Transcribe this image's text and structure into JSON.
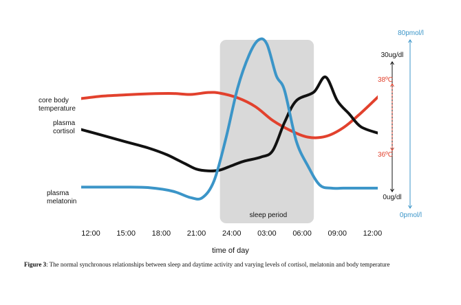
{
  "chart_data": {
    "type": "line",
    "xlabel": "time of day",
    "x_ticks": [
      "12:00",
      "15:00",
      "18:00",
      "21:00",
      "24:00",
      "03:00",
      "06:00",
      "09:00",
      "12:00"
    ],
    "x_hours": [
      12,
      15,
      18,
      21,
      24,
      27,
      30,
      33,
      36
    ],
    "xlim": [
      12,
      36
    ],
    "shaded_region": {
      "label": "sleep period",
      "start": "23:00",
      "end": "07:00",
      "start_hour": 23,
      "end_hour": 31,
      "color": "#d9d9d9"
    },
    "series": [
      {
        "name": "core body temperature",
        "label_lines": [
          "core body",
          "temperature"
        ],
        "color": "#e2412d",
        "axis": "temperature",
        "x": [
          11,
          13,
          15,
          17,
          19,
          20.5,
          22,
          23,
          24.5,
          26,
          27.5,
          29,
          30.5,
          32,
          33.5,
          35,
          36.5
        ],
        "y": [
          37.55,
          37.63,
          37.67,
          37.7,
          37.71,
          37.68,
          37.74,
          37.72,
          37.58,
          37.32,
          36.9,
          36.6,
          36.4,
          36.42,
          36.68,
          37.12,
          37.62
        ]
      },
      {
        "name": "plasma cortisol",
        "label_lines": [
          "plasma",
          "cortisol"
        ],
        "color": "#111111",
        "axis": "cortisol",
        "x": [
          11,
          13,
          15,
          17,
          18.5,
          20,
          21,
          22,
          23,
          24,
          25,
          26.5,
          27.5,
          28.5,
          29.5,
          31,
          32,
          33,
          34,
          35,
          36.5
        ],
        "y": [
          14.5,
          13,
          11.5,
          10,
          8.5,
          6.5,
          5.2,
          4.8,
          5,
          6,
          7,
          8,
          9.5,
          16,
          21,
          23,
          26.5,
          21,
          18,
          15,
          13.5
        ]
      },
      {
        "name": "plasma melatonin",
        "label_lines": [
          "plasma",
          "melatonin"
        ],
        "color": "#3b95c8",
        "axis": "melatonin",
        "x": [
          11,
          13,
          15,
          17,
          19,
          20.5,
          21.5,
          22.5,
          23.5,
          24.5,
          25.5,
          26.3,
          27,
          27.8,
          28.5,
          29.5,
          30.5,
          31.5,
          32.5,
          33.5,
          34.5,
          36.5
        ],
        "y": [
          10,
          10,
          10,
          9.7,
          8,
          5,
          5,
          13,
          33,
          57,
          73,
          80,
          78,
          63,
          56,
          32,
          20,
          11,
          9.5,
          9.5,
          9.5,
          9.5
        ]
      }
    ],
    "axes": [
      {
        "name": "cortisol",
        "color": "#111111",
        "top_label": "30ug/dl",
        "bottom_label": "0ug/dl",
        "range": [
          0,
          30
        ]
      },
      {
        "name": "temperature",
        "color": "#e2412d",
        "top_label": "38ºC",
        "bottom_label": "36ºC",
        "range": [
          36,
          38
        ]
      },
      {
        "name": "melatonin",
        "color": "#3b95c8",
        "top_label": "80pmol/l",
        "bottom_label": "0pmol/l",
        "range": [
          0,
          80
        ]
      }
    ],
    "grid": false,
    "legend": "none"
  },
  "caption": {
    "prefix": "Figure 3",
    "text": ": The normal synchronous relationships between sleep and daytime activity and varying levels of cortisol, melatonin and body temperature"
  }
}
